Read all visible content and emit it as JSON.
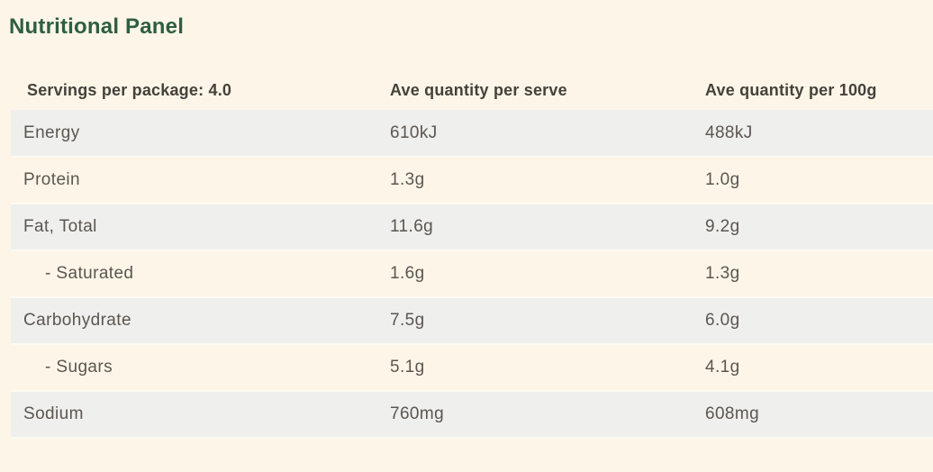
{
  "page": {
    "title": "Nutritional Panel",
    "background_color": "#fdf6e8",
    "accent_green": "#2e5e40",
    "stripe_row_color": "#efefed"
  },
  "table": {
    "columns": [
      {
        "label": "Servings per package: 4.0"
      },
      {
        "label": "Ave quantity per serve"
      },
      {
        "label": "Ave quantity per 100g"
      }
    ],
    "rows": [
      {
        "nutrient": "Energy",
        "per_serve": "610kJ",
        "per_100g": "488kJ",
        "indent": false
      },
      {
        "nutrient": "Protein",
        "per_serve": "1.3g",
        "per_100g": "1.0g",
        "indent": false
      },
      {
        "nutrient": "Fat, Total",
        "per_serve": "11.6g",
        "per_100g": "9.2g",
        "indent": false
      },
      {
        "nutrient": "- Saturated",
        "per_serve": "1.6g",
        "per_100g": "1.3g",
        "indent": true
      },
      {
        "nutrient": "Carbohydrate",
        "per_serve": "7.5g",
        "per_100g": "6.0g",
        "indent": false
      },
      {
        "nutrient": "- Sugars",
        "per_serve": "5.1g",
        "per_100g": "4.1g",
        "indent": true
      },
      {
        "nutrient": "Sodium",
        "per_serve": "760mg",
        "per_100g": "608mg",
        "indent": false
      }
    ]
  }
}
